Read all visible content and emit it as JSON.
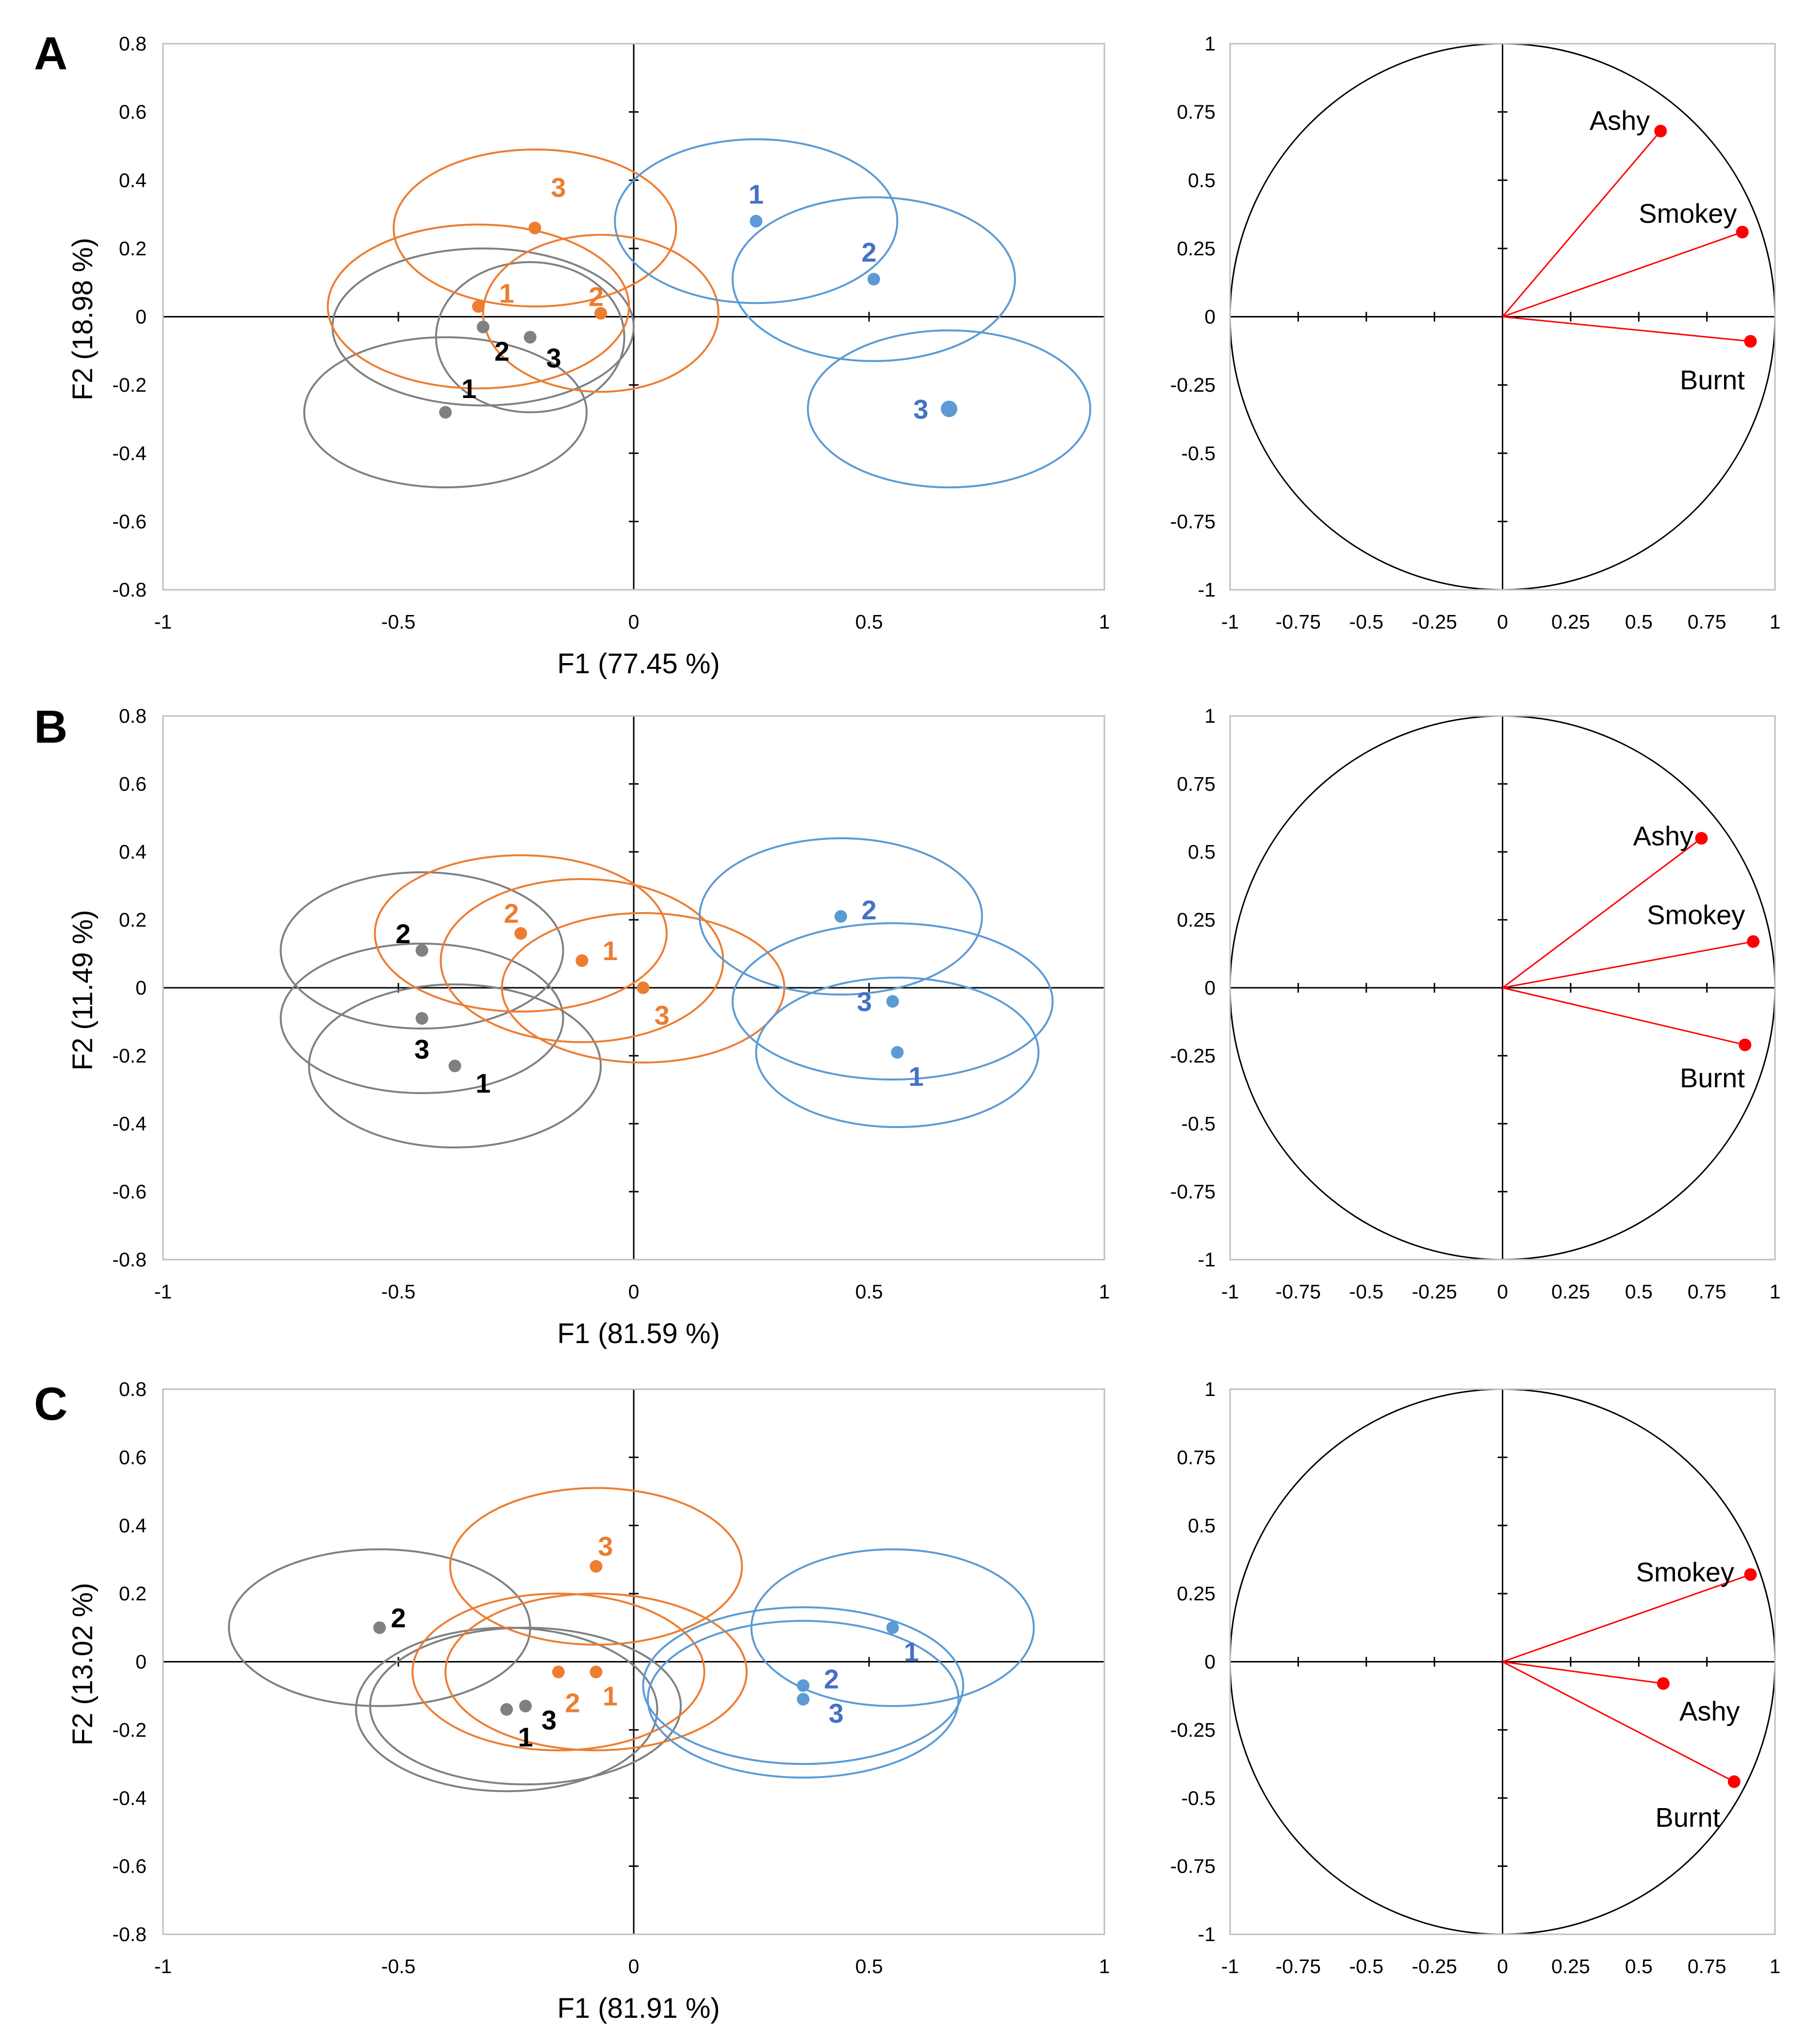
{
  "colors": {
    "grey": "#808080",
    "orange": "#ED7D31",
    "blue": "#5B9BD5",
    "grey_label": "#000000",
    "orange_label": "#ED7D31",
    "blue_label": "#4472C4",
    "vector": "#FF0000"
  },
  "chart_data": [
    {
      "type": "scatter",
      "panel": "A",
      "xlabel": "F1 (77.45 %)",
      "ylabel": "F2 (18.98 %)",
      "xlim": [
        -1,
        1
      ],
      "ylim": [
        -0.8,
        0.8
      ],
      "xticks": [
        "-1",
        "-0.5",
        "0",
        "0.5",
        "1"
      ],
      "yticks": [
        "-0.8",
        "-0.6",
        "-0.4",
        "-0.2",
        "0",
        "0.2",
        "0.4",
        "0.6",
        "0.8"
      ],
      "series": [
        {
          "color": "grey",
          "points": [
            {
              "label": "1",
              "x": -0.4,
              "y": -0.28,
              "rx": 0.3,
              "ry": 0.22,
              "lx": -0.35,
              "ly": -0.21
            },
            {
              "label": "2",
              "x": -0.32,
              "y": -0.03,
              "rx": 0.32,
              "ry": 0.23,
              "lx": -0.28,
              "ly": -0.1
            },
            {
              "label": "3",
              "x": -0.22,
              "y": -0.06,
              "rx": 0.2,
              "ry": 0.22,
              "lx": -0.17,
              "ly": -0.12
            }
          ]
        },
        {
          "color": "orange",
          "points": [
            {
              "label": "1",
              "x": -0.33,
              "y": 0.03,
              "rx": 0.32,
              "ry": 0.24,
              "lx": -0.27,
              "ly": 0.07
            },
            {
              "label": "2",
              "x": -0.07,
              "y": 0.01,
              "rx": 0.25,
              "ry": 0.23,
              "lx": -0.08,
              "ly": 0.06
            },
            {
              "label": "3",
              "x": -0.21,
              "y": 0.26,
              "rx": 0.3,
              "ry": 0.23,
              "lx": -0.16,
              "ly": 0.38
            }
          ]
        },
        {
          "color": "blue",
          "points": [
            {
              "label": "1",
              "x": 0.26,
              "y": 0.28,
              "rx": 0.3,
              "ry": 0.24,
              "lx": 0.26,
              "ly": 0.36
            },
            {
              "label": "2",
              "x": 0.51,
              "y": 0.11,
              "rx": 0.3,
              "ry": 0.24,
              "lx": 0.5,
              "ly": 0.19
            },
            {
              "label": "3",
              "x": 0.67,
              "y": -0.27,
              "rx": 0.3,
              "ry": 0.23,
              "lx": 0.61,
              "ly": -0.27
            }
          ]
        }
      ]
    },
    {
      "type": "scatter",
      "panel": "A-loadings",
      "xlim": [
        -1,
        1
      ],
      "ylim": [
        -1,
        1
      ],
      "xticks": [
        "-1",
        "-0.75",
        "-0.5",
        "-0.25",
        "0",
        "0.25",
        "0.5",
        "0.75",
        "1"
      ],
      "yticks": [
        "-1",
        "-0.75",
        "-0.5",
        "-0.25",
        "0",
        "0.25",
        "0.5",
        "0.75",
        "1"
      ],
      "variables": [
        {
          "name": "Ashy",
          "x": 0.58,
          "y": 0.68,
          "lx": 0.43,
          "ly": 0.72
        },
        {
          "name": "Smokey",
          "x": 0.88,
          "y": 0.31,
          "lx": 0.68,
          "ly": 0.38
        },
        {
          "name": "Burnt",
          "x": 0.91,
          "y": -0.09,
          "lx": 0.77,
          "ly": -0.23
        }
      ]
    },
    {
      "type": "scatter",
      "panel": "B",
      "xlabel": "F1 (81.59 %)",
      "ylabel": "F2 (11.49 %)",
      "xlim": [
        -1,
        1
      ],
      "ylim": [
        -0.8,
        0.8
      ],
      "xticks": [
        "-1",
        "-0.5",
        "0",
        "0.5",
        "1"
      ],
      "yticks": [
        "-0.8",
        "-0.6",
        "-0.4",
        "-0.2",
        "0",
        "0.2",
        "0.4",
        "0.6",
        "0.8"
      ],
      "series": [
        {
          "color": "grey",
          "points": [
            {
              "label": "1",
              "x": -0.38,
              "y": -0.23,
              "rx": 0.31,
              "ry": 0.24,
              "lx": -0.32,
              "ly": -0.28
            },
            {
              "label": "2",
              "x": -0.45,
              "y": 0.11,
              "rx": 0.3,
              "ry": 0.23,
              "lx": -0.49,
              "ly": 0.16
            },
            {
              "label": "3",
              "x": -0.45,
              "y": -0.09,
              "rx": 0.3,
              "ry": 0.22,
              "lx": -0.45,
              "ly": -0.18
            }
          ]
        },
        {
          "color": "orange",
          "points": [
            {
              "label": "1",
              "x": -0.11,
              "y": 0.08,
              "rx": 0.3,
              "ry": 0.24,
              "lx": -0.05,
              "ly": 0.11
            },
            {
              "label": "2",
              "x": -0.24,
              "y": 0.16,
              "rx": 0.31,
              "ry": 0.23,
              "lx": -0.26,
              "ly": 0.22
            },
            {
              "label": "3",
              "x": 0.02,
              "y": 0.0,
              "rx": 0.3,
              "ry": 0.22,
              "lx": 0.06,
              "ly": -0.08
            }
          ]
        },
        {
          "color": "blue",
          "points": [
            {
              "label": "1",
              "x": 0.56,
              "y": -0.19,
              "rx": 0.3,
              "ry": 0.22,
              "lx": 0.6,
              "ly": -0.26
            },
            {
              "label": "2",
              "x": 0.44,
              "y": 0.21,
              "rx": 0.3,
              "ry": 0.23,
              "lx": 0.5,
              "ly": 0.23
            },
            {
              "label": "3",
              "x": 0.55,
              "y": -0.04,
              "rx": 0.34,
              "ry": 0.23,
              "lx": 0.49,
              "ly": -0.04
            }
          ]
        }
      ]
    },
    {
      "type": "scatter",
      "panel": "B-loadings",
      "xlim": [
        -1,
        1
      ],
      "ylim": [
        -1,
        1
      ],
      "xticks": [
        "-1",
        "-0.75",
        "-0.5",
        "-0.25",
        "0",
        "0.25",
        "0.5",
        "0.75",
        "1"
      ],
      "yticks": [
        "-1",
        "-0.75",
        "-0.5",
        "-0.25",
        "0",
        "0.25",
        "0.5",
        "0.75",
        "1"
      ],
      "variables": [
        {
          "name": "Ashy",
          "x": 0.73,
          "y": 0.55,
          "lx": 0.59,
          "ly": 0.56
        },
        {
          "name": "Smokey",
          "x": 0.92,
          "y": 0.17,
          "lx": 0.71,
          "ly": 0.27
        },
        {
          "name": "Burnt",
          "x": 0.89,
          "y": -0.21,
          "lx": 0.77,
          "ly": -0.33
        }
      ]
    },
    {
      "type": "scatter",
      "panel": "C",
      "xlabel": "F1 (81.91 %)",
      "ylabel": "F2 (13.02 %)",
      "xlim": [
        -1,
        1
      ],
      "ylim": [
        -0.8,
        0.8
      ],
      "xticks": [
        "-1",
        "-0.5",
        "0",
        "0.5",
        "1"
      ],
      "yticks": [
        "-0.8",
        "-0.6",
        "-0.4",
        "-0.2",
        "0",
        "0.2",
        "0.4",
        "0.6",
        "0.8"
      ],
      "series": [
        {
          "color": "grey",
          "points": [
            {
              "label": "1",
              "x": -0.27,
              "y": -0.14,
              "rx": 0.32,
              "ry": 0.24,
              "lx": -0.23,
              "ly": -0.22
            },
            {
              "label": "2",
              "x": -0.54,
              "y": 0.1,
              "rx": 0.32,
              "ry": 0.23,
              "lx": -0.5,
              "ly": 0.13
            },
            {
              "label": "3",
              "x": -0.23,
              "y": -0.13,
              "rx": 0.33,
              "ry": 0.23,
              "lx": -0.18,
              "ly": -0.17
            }
          ]
        },
        {
          "color": "orange",
          "points": [
            {
              "label": "1",
              "x": -0.08,
              "y": -0.03,
              "rx": 0.32,
              "ry": 0.23,
              "lx": -0.05,
              "ly": -0.1
            },
            {
              "label": "2",
              "x": -0.16,
              "y": -0.03,
              "rx": 0.31,
              "ry": 0.23,
              "lx": -0.13,
              "ly": -0.12
            },
            {
              "label": "3",
              "x": -0.08,
              "y": 0.28,
              "rx": 0.31,
              "ry": 0.23,
              "lx": -0.06,
              "ly": 0.34
            }
          ]
        },
        {
          "color": "blue",
          "points": [
            {
              "label": "1",
              "x": 0.55,
              "y": 0.1,
              "rx": 0.3,
              "ry": 0.23,
              "lx": 0.59,
              "ly": 0.03
            },
            {
              "label": "2",
              "x": 0.36,
              "y": -0.07,
              "rx": 0.34,
              "ry": 0.23,
              "lx": 0.42,
              "ly": -0.05
            },
            {
              "label": "3",
              "x": 0.36,
              "y": -0.11,
              "rx": 0.33,
              "ry": 0.23,
              "lx": 0.43,
              "ly": -0.15
            }
          ]
        }
      ]
    },
    {
      "type": "scatter",
      "panel": "C-loadings",
      "xlim": [
        -1,
        1
      ],
      "ylim": [
        -1,
        1
      ],
      "xticks": [
        "-1",
        "-0.75",
        "-0.5",
        "-0.25",
        "0",
        "0.25",
        "0.5",
        "0.75",
        "1"
      ],
      "yticks": [
        "-1",
        "-0.75",
        "-0.5",
        "-0.25",
        "0",
        "0.25",
        "0.5",
        "0.75",
        "1"
      ],
      "variables": [
        {
          "name": "Smokey",
          "x": 0.91,
          "y": 0.32,
          "lx": 0.67,
          "ly": 0.33
        },
        {
          "name": "Ashy",
          "x": 0.59,
          "y": -0.08,
          "lx": 0.76,
          "ly": -0.18
        },
        {
          "name": "Burnt",
          "x": 0.85,
          "y": -0.44,
          "lx": 0.68,
          "ly": -0.57
        }
      ]
    }
  ]
}
